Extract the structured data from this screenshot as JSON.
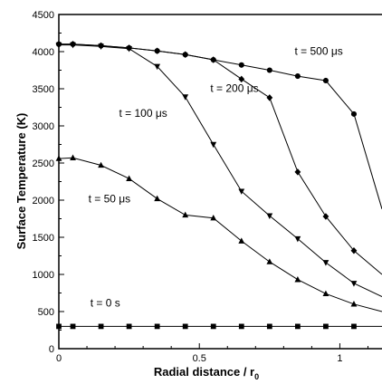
{
  "chart_data": {
    "type": "line",
    "title": "",
    "xlabel": "Radial distance / r",
    "xlabel_subscript": "0",
    "ylabel": "Surface Temperature (K)",
    "xlim": [
      0,
      1.15
    ],
    "ylim": [
      0,
      4500
    ],
    "x_ticks": [
      0,
      0.5,
      1
    ],
    "x_tick_labels": [
      "0",
      "0.5",
      "1"
    ],
    "y_ticks": [
      0,
      500,
      1000,
      1500,
      2000,
      2500,
      3000,
      3500,
      4000,
      4500
    ],
    "y_tick_labels": [
      "0",
      "500",
      "1000",
      "1500",
      "2000",
      "2500",
      "3000",
      "3500",
      "4000",
      "4500"
    ],
    "grid": false,
    "legend": "none",
    "line_color": "#000000",
    "series": [
      {
        "label": "t = 0 s",
        "marker": "square",
        "x": [
          0,
          0.05,
          0.15,
          0.25,
          0.35,
          0.45,
          0.55,
          0.65,
          0.75,
          0.85,
          0.95,
          1.05,
          1.15
        ],
        "y": [
          300,
          300,
          300,
          300,
          300,
          300,
          300,
          300,
          300,
          300,
          300,
          300,
          300
        ]
      },
      {
        "label": "t = 50 μs",
        "marker": "triangle-up",
        "x": [
          0,
          0.05,
          0.15,
          0.25,
          0.35,
          0.45,
          0.55,
          0.65,
          0.75,
          0.85,
          0.95,
          1.05,
          1.15
        ],
        "y": [
          2560,
          2570,
          2470,
          2290,
          2020,
          1800,
          1760,
          1450,
          1170,
          930,
          740,
          600,
          500
        ]
      },
      {
        "label": "t = 100 μs",
        "marker": "triangle-down",
        "x": [
          0,
          0.05,
          0.15,
          0.25,
          0.35,
          0.45,
          0.55,
          0.65,
          0.75,
          0.85,
          0.95,
          1.05,
          1.15
        ],
        "y": [
          4090,
          4090,
          4070,
          4040,
          3800,
          3390,
          2750,
          2120,
          1790,
          1480,
          1160,
          880,
          700
        ]
      },
      {
        "label": "t = 200 μs",
        "marker": "diamond",
        "x": [
          0,
          0.05,
          0.15,
          0.25,
          0.35,
          0.45,
          0.55,
          0.65,
          0.75,
          0.85,
          0.95,
          1.05,
          1.15
        ],
        "y": [
          4100,
          4100,
          4080,
          4050,
          4010,
          3960,
          3890,
          3630,
          3380,
          2380,
          1780,
          1320,
          1000
        ]
      },
      {
        "label": "t = 500 μs",
        "marker": "circle",
        "x": [
          0,
          0.05,
          0.15,
          0.25,
          0.35,
          0.45,
          0.55,
          0.65,
          0.75,
          0.85,
          0.95,
          1.05,
          1.15
        ],
        "y": [
          4100,
          4100,
          4080,
          4050,
          4010,
          3960,
          3890,
          3820,
          3750,
          3670,
          3610,
          3160,
          1880
        ]
      }
    ],
    "annotations": [
      {
        "text": "t = 0 s",
        "x": 0.165,
        "y": 570
      },
      {
        "text": "t = 50 μs",
        "x": 0.18,
        "y": 1970
      },
      {
        "text": "t = 100 μs",
        "x": 0.3,
        "y": 3120
      },
      {
        "text": "t = 200 μs",
        "x": 0.625,
        "y": 3460
      },
      {
        "text": "t = 500 μs",
        "x": 0.925,
        "y": 3960
      }
    ]
  }
}
